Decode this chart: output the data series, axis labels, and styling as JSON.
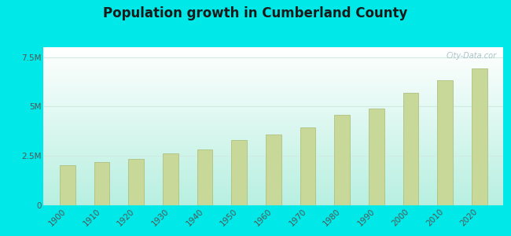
{
  "title": "Population growth in Cumberland County",
  "years": [
    1900,
    1910,
    1920,
    1930,
    1940,
    1950,
    1960,
    1970,
    1980,
    1990,
    2000,
    2010,
    2020
  ],
  "tennessee_values": [
    2020616,
    2184789,
    2337885,
    2616556,
    2845627,
    3291718,
    3567089,
    3923687,
    4591120,
    4877185,
    5689283,
    6346105,
    6910840
  ],
  "bar_color": "#c8d898",
  "bar_edge_color": "#b0c080",
  "outer_bg": "#00e8e8",
  "plot_bg_topleft": "#edfdf5",
  "plot_bg_bottomleft": "#b8f0e0",
  "ylim": [
    0,
    8000000
  ],
  "yticks": [
    0,
    2500000,
    5000000,
    7500000
  ],
  "ytick_labels": [
    "0",
    "2.5M",
    "5M",
    "7.5M"
  ],
  "legend_cumberland_color": "#e8b0d8",
  "legend_tennessee_color": "#d8e0a0",
  "watermark": "City-Data.cor",
  "grid_color": "#d0ece0",
  "bar_width": 4.5
}
